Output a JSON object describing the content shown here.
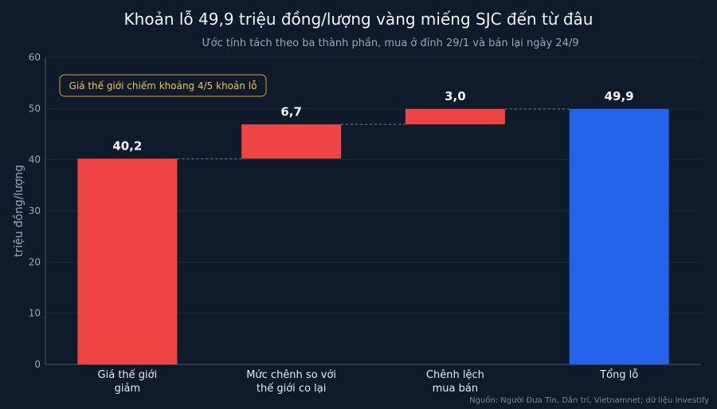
{
  "title": "Khoản lỗ 49,9 triệu đồng/lượng vàng miếng SJC đến từ đâu",
  "subtitle": "Ước tính tách theo ba thành phần, mua ở đỉnh 29/1 và bán lại ngày 24/9",
  "source": "Nguồn: Người Đưa Tin, Dân trí, Vietnamnet; dữ liệu Investify",
  "annotation": "Giá thế giới chiếm khoảng 4/5 khoản lỗ",
  "chart_data": {
    "type": "bar",
    "ylabel": "triệu đồng/lượng",
    "ylim": [
      0,
      60
    ],
    "yticks": [
      0,
      10,
      20,
      30,
      40,
      50,
      60
    ],
    "grid": true,
    "bars": [
      {
        "label": [
          "Giá thế giới",
          "giảm"
        ],
        "start": 0,
        "end": 40.2,
        "value_label": "40,2",
        "color": "#ef4444"
      },
      {
        "label": [
          "Mức chênh so với",
          "thế giới co lại"
        ],
        "start": 40.2,
        "end": 46.9,
        "value_label": "6,7",
        "color": "#ef4444"
      },
      {
        "label": [
          "Chênh lệch",
          "mua bán"
        ],
        "start": 46.9,
        "end": 49.9,
        "value_label": "3,0",
        "color": "#ef4444"
      },
      {
        "label": [
          "Tổng lỗ"
        ],
        "start": 0,
        "end": 49.9,
        "value_label": "49,9",
        "color": "#2563eb"
      }
    ]
  }
}
